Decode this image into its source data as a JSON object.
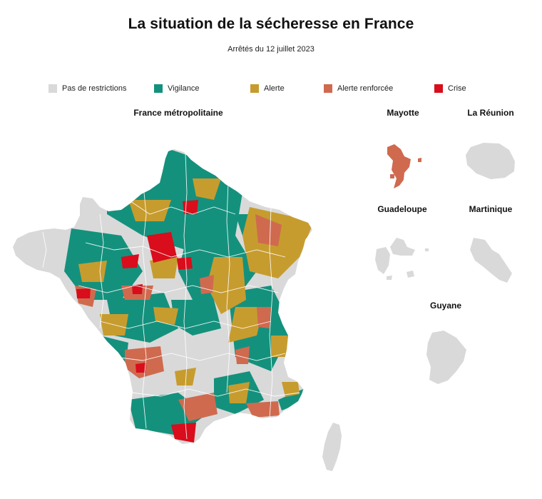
{
  "title": "La situation de la sécheresse en France",
  "subtitle": "Arrêtés du 12 juillet 2023",
  "legend": [
    {
      "label": "Pas de restrictions",
      "color": "#d9d9d9"
    },
    {
      "label": "Vigilance",
      "color": "#14917d"
    },
    {
      "label": "Alerte",
      "color": "#c79c2e"
    },
    {
      "label": "Alerte renforcée",
      "color": "#cf6a4f"
    },
    {
      "label": "Crise",
      "color": "#d90d1b"
    }
  ],
  "maps": {
    "metropole": "France métropolitaine",
    "mayotte": "Mayotte",
    "reunion": "La Réunion",
    "guadeloupe": "Guadeloupe",
    "martinique": "Martinique",
    "guyane": "Guyane"
  },
  "territory_levels": {
    "Mayotte": "Alerte renforcée",
    "La Réunion": "Pas de restrictions",
    "Guadeloupe": "Pas de restrictions",
    "Martinique": "Pas de restrictions",
    "Guyane": "Pas de restrictions"
  }
}
